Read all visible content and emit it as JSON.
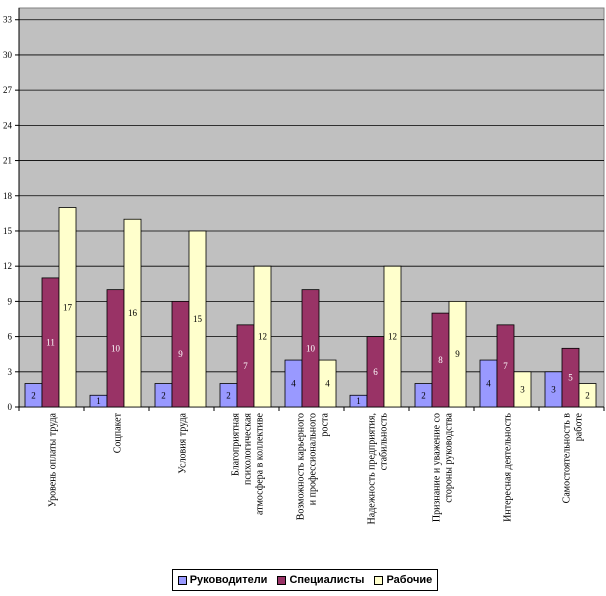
{
  "chart_data": {
    "type": "bar",
    "categories": [
      "Уровень оплаты труда",
      "Соцпакет",
      "Условия труда",
      "Благоприятная психологическая атмосфера в коллективе",
      "Возможность карьерного и профессионального роста",
      "Надежность предприятия, стабильность",
      "Признание и уважение со стороны руководства",
      "Интересная деятельность",
      "Самостоятельность в работе"
    ],
    "category_lines": [
      [
        "Уровень оплаты труда"
      ],
      [
        "Соцпакет"
      ],
      [
        "Условия труда"
      ],
      [
        "Благоприятная",
        "психологическая",
        "атмосфера в коллективе"
      ],
      [
        "Возможность карьерного",
        "и профессионального",
        "роста"
      ],
      [
        "Надежность предприятия,",
        "стабильность"
      ],
      [
        "Признание и уважение со",
        "стороны руководства"
      ],
      [
        "Интересная деятельность"
      ],
      [
        "Самостоятельность в",
        "работе"
      ]
    ],
    "series": [
      {
        "name": "Руководители",
        "color": "#9999ff",
        "values": [
          2,
          1,
          2,
          2,
          4,
          1,
          2,
          4,
          3
        ]
      },
      {
        "name": "Специалисты",
        "color": "#993366",
        "values": [
          11,
          10,
          9,
          7,
          10,
          6,
          8,
          7,
          5
        ]
      },
      {
        "name": "Рабочие",
        "color": "#ffffcc",
        "values": [
          17,
          16,
          15,
          12,
          4,
          12,
          9,
          3,
          2
        ]
      }
    ],
    "y_ticks": [
      "0",
      "3",
      "6",
      "9",
      "12",
      "15",
      "18",
      "21",
      "24",
      "27",
      "30",
      "33"
    ],
    "ylim": [
      0,
      34
    ],
    "grid": true,
    "plot_background": "#c0c0c0",
    "legend_position": "bottom"
  }
}
